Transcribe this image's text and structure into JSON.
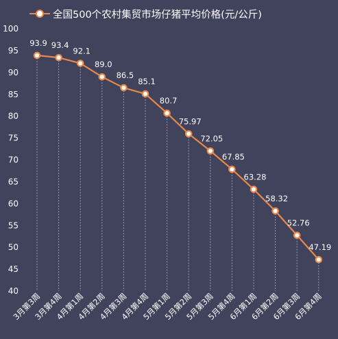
{
  "chart_data": {
    "type": "line",
    "title": "",
    "xlabel": "",
    "ylabel": "",
    "ylim": [
      40,
      100
    ],
    "yticks": [
      40,
      45,
      50,
      55,
      60,
      65,
      70,
      75,
      80,
      85,
      90,
      95,
      100
    ],
    "grid": false,
    "legend_position": "top",
    "categories": [
      "3月第3周",
      "3月第4周",
      "4月第1周",
      "4月第2周",
      "4月第3周",
      "4月第4周",
      "5月第1周",
      "5月第2周",
      "5月第3周",
      "5月第4周",
      "6月第1周",
      "6月第2周",
      "6月第3周",
      "6月第4周"
    ],
    "series": [
      {
        "name": "全国500个农村集贸市场仔猪平均价格(元/公斤)",
        "values": [
          93.9,
          93.4,
          92.1,
          89.0,
          86.5,
          85.1,
          80.7,
          75.97,
          72.05,
          67.85,
          63.28,
          58.32,
          52.76,
          47.19
        ],
        "labels": [
          "93.9",
          "93.4",
          "92.1",
          "89.0",
          "86.5",
          "85.1",
          "80.7",
          "75.97",
          "72.05",
          "67.85",
          "63.28",
          "58.32",
          "52.76",
          "47.19"
        ]
      }
    ]
  },
  "colors": {
    "background": "#41425b",
    "line": "#e8894a",
    "marker_fill": "#ffffff",
    "text": "#ffffff",
    "drop_lines": "#9a9cb2"
  }
}
